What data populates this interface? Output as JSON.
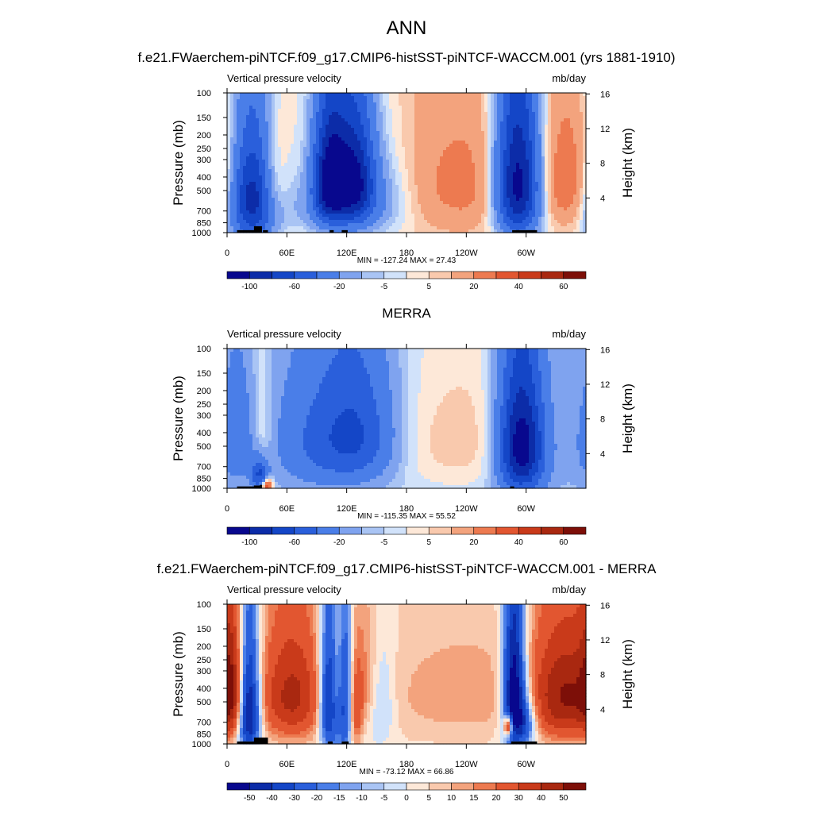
{
  "figure": {
    "title": "ANN"
  },
  "chart_data": [
    {
      "type": "heatmap",
      "title": "f.e21.FWaerchem-piNTCF.f09_g17.CMIP6-histSST-piNTCF-WACCM.001 (yrs 1881-1910)",
      "left_label": "Vertical pressure velocity",
      "right_label": "mb/day",
      "ylabel": "Pressure (mb)",
      "y2label": "Height (km)",
      "x_ticks": [
        "0",
        "60E",
        "120E",
        "180",
        "120W",
        "60W"
      ],
      "x_tick_lon": [
        0,
        60,
        120,
        180,
        240,
        300
      ],
      "xlim": [
        0,
        360
      ],
      "y_ticks": [
        100,
        150,
        200,
        250,
        300,
        400,
        500,
        700,
        850,
        1000
      ],
      "ylim": [
        100,
        1000
      ],
      "height_ticks": [
        4,
        8,
        12,
        16
      ],
      "stats": "MIN = -127.24  MAX =  27.43",
      "colorbar_labels": [
        "-100",
        "-60",
        "-20",
        "-5",
        "5",
        "20",
        "40",
        "60"
      ],
      "levels": [
        -120,
        -100,
        -80,
        -60,
        -40,
        -20,
        -10,
        -5,
        0,
        5,
        10,
        20,
        30,
        40,
        50,
        60,
        70
      ],
      "colors": [
        "#08088e",
        "#0c2ca8",
        "#1446c7",
        "#2a5fdb",
        "#4a7ee8",
        "#7fa3ef",
        "#a9c4f4",
        "#d1e2fa",
        "#fde8d8",
        "#f9c9ad",
        "#f3a37d",
        "#ed7a50",
        "#e25630",
        "#c93a1a",
        "#a92810",
        "#7d0f08"
      ],
      "features": [
        {
          "lon": 25,
          "lev": 550,
          "wl": 16,
          "wp": 360,
          "amp": -100
        },
        {
          "lon": 45,
          "lev": 450,
          "wl": 10,
          "wp": 260,
          "amp": 25
        },
        {
          "lon": 90,
          "lev": 650,
          "wl": 40,
          "wp": 220,
          "amp": -12
        },
        {
          "lon": 103,
          "lev": 420,
          "wl": 12,
          "wp": 280,
          "amp": -110
        },
        {
          "lon": 128,
          "lev": 420,
          "wl": 14,
          "wp": 280,
          "amp": -95
        },
        {
          "lon": 150,
          "lev": 550,
          "wl": 28,
          "wp": 300,
          "amp": -25
        },
        {
          "lon": 235,
          "lev": 450,
          "wl": 65,
          "wp": 380,
          "amp": 22
        },
        {
          "lon": 292,
          "lev": 450,
          "wl": 16,
          "wp": 380,
          "amp": -127
        },
        {
          "lon": 345,
          "lev": 420,
          "wl": 28,
          "wp": 300,
          "amp": 24
        }
      ],
      "background": 2,
      "topography": [
        [
          10,
          30,
          960
        ],
        [
          27,
          35,
          900
        ],
        [
          36,
          41,
          960
        ],
        [
          103,
          107,
          960
        ],
        [
          115,
          121,
          960
        ],
        [
          286,
          311,
          960
        ]
      ]
    },
    {
      "type": "heatmap",
      "title": "MERRA",
      "left_label": "Vertical pressure velocity",
      "right_label": "mb/day",
      "ylabel": "Pressure (mb)",
      "y2label": "Height (km)",
      "x_ticks": [
        "0",
        "60E",
        "120E",
        "180",
        "120W",
        "60W"
      ],
      "x_tick_lon": [
        0,
        60,
        120,
        180,
        240,
        300
      ],
      "xlim": [
        0,
        360
      ],
      "y_ticks": [
        100,
        150,
        200,
        250,
        300,
        400,
        500,
        700,
        850,
        1000
      ],
      "ylim": [
        100,
        1000
      ],
      "height_ticks": [
        4,
        8,
        12,
        16
      ],
      "stats": "MIN = -115.35  MAX =  55.52",
      "colorbar_labels": [
        "-100",
        "-60",
        "-20",
        "-5",
        "5",
        "20",
        "40",
        "60"
      ],
      "levels": [
        -120,
        -100,
        -80,
        -60,
        -40,
        -20,
        -10,
        -5,
        0,
        5,
        10,
        20,
        30,
        40,
        50,
        60,
        70
      ],
      "colors": [
        "#08088e",
        "#0c2ca8",
        "#1446c7",
        "#2a5fdb",
        "#4a7ee8",
        "#7fa3ef",
        "#a9c4f4",
        "#d1e2fa",
        "#fde8d8",
        "#f9c9ad",
        "#f3a37d",
        "#ed7a50",
        "#e25630",
        "#c93a1a",
        "#a92810",
        "#7d0f08"
      ],
      "features": [
        {
          "lon": 10,
          "lev": 450,
          "wl": 12,
          "wp": 280,
          "amp": -25
        },
        {
          "lon": 33,
          "lev": 800,
          "wl": 6,
          "wp": 150,
          "amp": -60
        },
        {
          "lon": 35,
          "lev": 450,
          "wl": 8,
          "wp": 300,
          "amp": 15
        },
        {
          "lon": 40,
          "lev": 950,
          "wl": 4,
          "wp": 80,
          "amp": 55
        },
        {
          "lon": 100,
          "lev": 450,
          "wl": 35,
          "wp": 320,
          "amp": -40
        },
        {
          "lon": 135,
          "lev": 400,
          "wl": 25,
          "wp": 300,
          "amp": -35
        },
        {
          "lon": 235,
          "lev": 450,
          "wl": 60,
          "wp": 380,
          "amp": 14
        },
        {
          "lon": 295,
          "lev": 500,
          "wl": 16,
          "wp": 360,
          "amp": -115
        },
        {
          "lon": 345,
          "lev": 500,
          "wl": 30,
          "wp": 360,
          "amp": -8
        }
      ],
      "background": -6,
      "topography": [
        [
          10,
          30,
          970
        ],
        [
          27,
          33,
          955
        ],
        [
          33,
          35,
          945
        ],
        [
          284,
          288,
          970
        ]
      ]
    },
    {
      "type": "heatmap",
      "title": "f.e21.FWaerchem-piNTCF.f09_g17.CMIP6-histSST-piNTCF-WACCM.001 - MERRA",
      "left_label": "Vertical pressure velocity",
      "right_label": "mb/day",
      "ylabel": "Pressure (mb)",
      "y2label": "Height (km)",
      "x_ticks": [
        "0",
        "60E",
        "120E",
        "180",
        "120W",
        "60W"
      ],
      "x_tick_lon": [
        0,
        60,
        120,
        180,
        240,
        300
      ],
      "xlim": [
        0,
        360
      ],
      "y_ticks": [
        100,
        150,
        200,
        250,
        300,
        400,
        500,
        700,
        850,
        1000
      ],
      "ylim": [
        100,
        1000
      ],
      "height_ticks": [
        4,
        8,
        12,
        16
      ],
      "stats": "MIN = -73.12  MAX =  66.86",
      "colorbar_labels": [
        "-50",
        "-40",
        "-30",
        "-20",
        "-15",
        "-10",
        "-5",
        "0",
        "5",
        "10",
        "15",
        "20",
        "30",
        "40",
        "50"
      ],
      "levels": [
        -60,
        -50,
        -40,
        -30,
        -20,
        -15,
        -10,
        -5,
        0,
        5,
        10,
        15,
        20,
        30,
        40,
        50,
        60
      ],
      "colors": [
        "#08088e",
        "#0c2ca8",
        "#1446c7",
        "#2a5fdb",
        "#4a7ee8",
        "#7fa3ef",
        "#a9c4f4",
        "#d1e2fa",
        "#fde8d8",
        "#f9c9ad",
        "#f3a37d",
        "#ed7a50",
        "#e25630",
        "#c93a1a",
        "#a92810",
        "#7d0f08"
      ],
      "features": [
        {
          "lon": 5,
          "lev": 400,
          "wl": 8,
          "wp": 300,
          "amp": 30
        },
        {
          "lon": 22,
          "lev": 550,
          "wl": 8,
          "wp": 380,
          "amp": -70
        },
        {
          "lon": 65,
          "lev": 450,
          "wl": 22,
          "wp": 300,
          "amp": 40
        },
        {
          "lon": 103,
          "lev": 500,
          "wl": 7,
          "wp": 380,
          "amp": -60
        },
        {
          "lon": 112,
          "lev": 450,
          "wl": 6,
          "wp": 320,
          "amp": 30
        },
        {
          "lon": 118,
          "lev": 500,
          "wl": 6,
          "wp": 380,
          "amp": -55
        },
        {
          "lon": 128,
          "lev": 600,
          "wl": 5,
          "wp": 300,
          "amp": 25
        },
        {
          "lon": 140,
          "lev": 400,
          "wl": 10,
          "wp": 280,
          "amp": 20
        },
        {
          "lon": 150,
          "lev": 500,
          "wl": 12,
          "wp": 300,
          "amp": -20
        },
        {
          "lon": 235,
          "lev": 450,
          "wl": 70,
          "wp": 300,
          "amp": 10
        },
        {
          "lon": 288,
          "lev": 450,
          "wl": 8,
          "wp": 380,
          "amp": -73
        },
        {
          "lon": 300,
          "lev": 700,
          "wl": 8,
          "wp": 200,
          "amp": -30
        },
        {
          "lon": 282,
          "lev": 750,
          "wl": 3,
          "wp": 80,
          "amp": 60
        },
        {
          "lon": 340,
          "lev": 450,
          "wl": 25,
          "wp": 300,
          "amp": 45
        }
      ],
      "background": 3,
      "topography": [
        [
          10,
          30,
          960
        ],
        [
          27,
          41,
          900
        ],
        [
          101,
          106,
          960
        ],
        [
          115,
          122,
          960
        ],
        [
          285,
          311,
          960
        ]
      ]
    }
  ]
}
